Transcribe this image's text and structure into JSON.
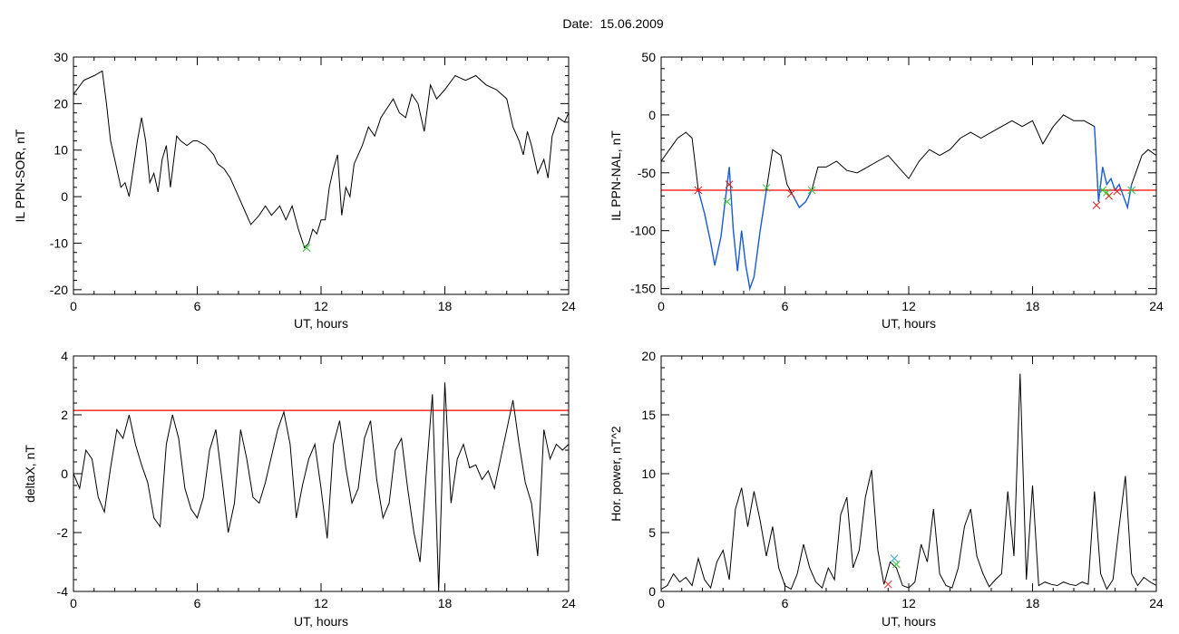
{
  "figure": {
    "title": "Date:  15.06.2009"
  },
  "colors": {
    "trace": "#000000",
    "threshold": "#ff0000",
    "highlight": "#1f5fd6",
    "marker_red": "#e0201a",
    "marker_green": "#33cc33",
    "marker_cyan": "#33aacc"
  },
  "chart_data": [
    {
      "id": "sor",
      "type": "line",
      "xlabel": "UT, hours",
      "ylabel": "IL PPN-SOR, nT",
      "xlim": [
        0,
        24
      ],
      "ylim": [
        -21,
        30
      ],
      "xticks": [
        0,
        6,
        12,
        18,
        24
      ],
      "yticks": [
        -20,
        -10,
        0,
        10,
        20,
        30
      ],
      "series": [
        {
          "x": [
            0,
            0.5,
            1.0,
            1.4,
            1.6,
            1.8,
            2.0,
            2.3,
            2.5,
            2.7,
            2.9,
            3.1,
            3.3,
            3.5,
            3.7,
            3.9,
            4.1,
            4.3,
            4.5,
            4.7,
            5.0,
            5.2,
            5.5,
            5.8,
            6.0,
            6.4,
            6.8,
            7.0,
            7.3,
            7.6,
            8.0,
            8.3,
            8.6,
            9.0,
            9.3,
            9.6,
            10.0,
            10.3,
            10.6,
            10.9,
            11.2,
            11.4,
            11.6,
            11.8,
            12.0,
            12.2,
            12.4,
            12.6,
            12.8,
            13.0,
            13.2,
            13.4,
            13.6,
            14.0,
            14.3,
            14.6,
            14.9,
            15.2,
            15.5,
            15.8,
            16.1,
            16.4,
            16.7,
            17.0,
            17.3,
            17.6,
            18.0,
            18.5,
            19.0,
            19.5,
            20.0,
            20.5,
            21.0,
            21.3,
            21.6,
            21.8,
            22.0,
            22.2,
            22.5,
            22.8,
            23.0,
            23.2,
            23.5,
            23.8,
            24.0
          ],
          "y": [
            22,
            25,
            26,
            27,
            20,
            12,
            8,
            2,
            3,
            0,
            6,
            12,
            17,
            12,
            3,
            5,
            1,
            8,
            11,
            2,
            13,
            12,
            11,
            12,
            12,
            11,
            9,
            7,
            6,
            4,
            0,
            -3,
            -6,
            -4,
            -2,
            -4,
            -2,
            -5,
            -2,
            -7,
            -11,
            -10,
            -7,
            -8,
            -5,
            -5,
            2,
            6,
            9,
            -4,
            2,
            0,
            7,
            11,
            15,
            13,
            17,
            19,
            21,
            18,
            17,
            22,
            20,
            14,
            24,
            21,
            23,
            26,
            25,
            26,
            24,
            23,
            21,
            15,
            12,
            9,
            14,
            11,
            5,
            8,
            4,
            13,
            17,
            16,
            18
          ]
        }
      ],
      "markers": [
        {
          "x": 11.3,
          "y": -11,
          "color": "green"
        }
      ]
    },
    {
      "id": "nal",
      "type": "line",
      "xlabel": "UT, hours",
      "ylabel": "IL PPN-NAL, nT",
      "xlim": [
        0,
        24
      ],
      "ylim": [
        -155,
        50
      ],
      "xticks": [
        0,
        6,
        12,
        18,
        24
      ],
      "yticks": [
        -150,
        -100,
        -50,
        0,
        50
      ],
      "threshold": -65,
      "series": [
        {
          "x": [
            0,
            0.4,
            0.8,
            1.2,
            1.5,
            1.8,
            2.1,
            2.4,
            2.6,
            2.9,
            3.1,
            3.3,
            3.5,
            3.7,
            3.9,
            4.1,
            4.3,
            4.5,
            4.8,
            5.1,
            5.4,
            5.8,
            6.1,
            6.4,
            6.7,
            7.0,
            7.3,
            7.6,
            8.0,
            8.5,
            9.0,
            9.5,
            10.0,
            10.5,
            11.0,
            11.5,
            12.0,
            12.5,
            13.0,
            13.5,
            14.0,
            14.5,
            15.0,
            15.5,
            16.0,
            16.5,
            17.0,
            17.5,
            18.0,
            18.5,
            19.0,
            19.5,
            20.0,
            20.5,
            21.0,
            21.2,
            21.4,
            21.6,
            21.8,
            22.0,
            22.2,
            22.4,
            22.6,
            22.8,
            23.0,
            23.3,
            23.6,
            24.0
          ],
          "y": [
            -40,
            -30,
            -20,
            -15,
            -20,
            -65,
            -85,
            -110,
            -130,
            -105,
            -75,
            -45,
            -100,
            -135,
            -100,
            -130,
            -150,
            -140,
            -100,
            -65,
            -30,
            -35,
            -60,
            -70,
            -80,
            -75,
            -65,
            -45,
            -45,
            -40,
            -48,
            -50,
            -45,
            -40,
            -35,
            -45,
            -55,
            -40,
            -30,
            -35,
            -30,
            -20,
            -15,
            -20,
            -15,
            -10,
            -5,
            -10,
            -5,
            -25,
            -10,
            0,
            -5,
            -5,
            -10,
            -75,
            -45,
            -60,
            -55,
            -65,
            -60,
            -70,
            -80,
            -60,
            -50,
            -35,
            -30,
            -35
          ]
        }
      ],
      "highlight_segments": [
        [
          1.8,
          5.2
        ],
        [
          6.2,
          7.4
        ],
        [
          21.0,
          22.9
        ]
      ],
      "markers": [
        {
          "x": 1.8,
          "y": -65,
          "color": "red"
        },
        {
          "x": 3.3,
          "y": -60,
          "color": "red"
        },
        {
          "x": 6.3,
          "y": -68,
          "color": "red"
        },
        {
          "x": 21.1,
          "y": -78,
          "color": "red"
        },
        {
          "x": 21.7,
          "y": -70,
          "color": "red"
        },
        {
          "x": 22.1,
          "y": -66,
          "color": "red"
        },
        {
          "x": 3.2,
          "y": -75,
          "color": "green"
        },
        {
          "x": 5.1,
          "y": -63,
          "color": "green"
        },
        {
          "x": 7.3,
          "y": -65,
          "color": "green"
        },
        {
          "x": 21.4,
          "y": -65,
          "color": "green"
        },
        {
          "x": 21.6,
          "y": -67,
          "color": "green"
        },
        {
          "x": 22.8,
          "y": -65,
          "color": "green"
        }
      ]
    },
    {
      "id": "deltax",
      "type": "line",
      "xlabel": "UT, hours",
      "ylabel": "deltaX, nT",
      "xlim": [
        0,
        24
      ],
      "ylim": [
        -4,
        4
      ],
      "xticks": [
        0,
        6,
        12,
        18,
        24
      ],
      "yticks": [
        -4,
        -2,
        0,
        2,
        4
      ],
      "threshold": 2.15,
      "series": [
        {
          "x": [
            0,
            0.3,
            0.6,
            0.9,
            1.2,
            1.5,
            1.8,
            2.1,
            2.4,
            2.7,
            3.0,
            3.3,
            3.6,
            3.9,
            4.2,
            4.5,
            4.8,
            5.1,
            5.4,
            5.7,
            6.0,
            6.3,
            6.6,
            6.9,
            7.2,
            7.5,
            7.8,
            8.1,
            8.4,
            8.7,
            9.0,
            9.3,
            9.6,
            9.9,
            10.2,
            10.5,
            10.8,
            11.1,
            11.4,
            11.7,
            12.0,
            12.3,
            12.6,
            12.9,
            13.2,
            13.5,
            13.8,
            14.1,
            14.4,
            14.7,
            15.0,
            15.3,
            15.6,
            15.9,
            16.2,
            16.5,
            16.8,
            17.1,
            17.4,
            17.7,
            18.0,
            18.3,
            18.6,
            18.9,
            19.2,
            19.5,
            19.8,
            20.1,
            20.4,
            20.7,
            21.0,
            21.3,
            21.6,
            21.9,
            22.2,
            22.5,
            22.8,
            23.1,
            23.4,
            23.7,
            24.0
          ],
          "y": [
            0,
            -0.5,
            0.8,
            0.5,
            -0.8,
            -1.3,
            0.2,
            1.5,
            1.2,
            2.0,
            1.0,
            0.3,
            -0.3,
            -1.5,
            -1.8,
            1.0,
            2.0,
            1.2,
            -0.5,
            -1.2,
            -1.5,
            -0.8,
            0.8,
            1.5,
            -0.2,
            -2.0,
            -1.0,
            1.5,
            0.5,
            -0.8,
            -1.0,
            -0.3,
            0.6,
            1.5,
            2.1,
            1.0,
            -1.5,
            -0.4,
            0.5,
            1.0,
            -0.5,
            -2.2,
            1.0,
            1.8,
            0.2,
            -1.0,
            -0.5,
            1.2,
            1.8,
            -0.2,
            -1.5,
            -1.0,
            0.8,
            1.2,
            -0.5,
            -2.0,
            -3.0,
            0.0,
            2.7,
            -4.0,
            3.1,
            -1.0,
            0.5,
            1.0,
            0.2,
            0.3,
            -0.2,
            0.1,
            -0.5,
            0.5,
            1.5,
            2.5,
            1.0,
            -0.3,
            -1.0,
            -2.8,
            1.5,
            0.5,
            1.0,
            0.8,
            1.0
          ]
        }
      ]
    },
    {
      "id": "power",
      "type": "line",
      "xlabel": "UT, hours",
      "ylabel": "Hor. power, nT^2",
      "xlim": [
        0,
        24
      ],
      "ylim": [
        0,
        20
      ],
      "xticks": [
        0,
        6,
        12,
        18,
        24
      ],
      "yticks": [
        0,
        5,
        10,
        15,
        20
      ],
      "series": [
        {
          "x": [
            0,
            0.3,
            0.6,
            0.9,
            1.2,
            1.5,
            1.8,
            2.1,
            2.4,
            2.7,
            3.0,
            3.3,
            3.6,
            3.9,
            4.2,
            4.5,
            4.8,
            5.1,
            5.4,
            5.7,
            6.0,
            6.3,
            6.6,
            6.9,
            7.2,
            7.5,
            7.8,
            8.1,
            8.4,
            8.7,
            9.0,
            9.3,
            9.6,
            9.9,
            10.2,
            10.5,
            10.8,
            11.1,
            11.4,
            11.7,
            12.0,
            12.3,
            12.6,
            12.9,
            13.2,
            13.5,
            13.8,
            14.1,
            14.4,
            14.7,
            15.0,
            15.3,
            15.6,
            15.9,
            16.2,
            16.5,
            16.8,
            17.1,
            17.4,
            17.7,
            18.0,
            18.3,
            18.6,
            18.9,
            19.2,
            19.5,
            19.8,
            20.1,
            20.4,
            20.7,
            21.0,
            21.3,
            21.6,
            21.9,
            22.2,
            22.5,
            22.8,
            23.1,
            23.4,
            23.7,
            24.0
          ],
          "y": [
            0.2,
            0.5,
            1.5,
            0.8,
            1.2,
            0.5,
            2.8,
            1.0,
            0.3,
            2.5,
            3.5,
            1.0,
            7.0,
            8.8,
            5.5,
            8.5,
            6.0,
            3.0,
            5.5,
            2.0,
            0.5,
            0.2,
            1.5,
            4.0,
            2.0,
            0.8,
            0.3,
            2.0,
            1.0,
            6.5,
            8.0,
            2.0,
            3.5,
            8.0,
            10.3,
            3.5,
            0.6,
            2.5,
            2.0,
            0.5,
            0.3,
            0.8,
            4.0,
            2.5,
            7.0,
            1.5,
            0.5,
            0.3,
            2.0,
            5.5,
            7.0,
            3.0,
            1.5,
            0.4,
            1.0,
            1.5,
            8.5,
            3.0,
            18.5,
            1.0,
            9.0,
            0.5,
            0.8,
            0.6,
            0.5,
            0.8,
            0.6,
            0.5,
            0.8,
            0.6,
            8.5,
            1.5,
            0.2,
            1.0,
            5.5,
            9.8,
            1.5,
            0.5,
            1.2,
            0.8,
            0.5
          ]
        }
      ],
      "markers": [
        {
          "x": 11.0,
          "y": 0.6,
          "color": "red"
        },
        {
          "x": 11.3,
          "y": 2.8,
          "color": "cyan"
        },
        {
          "x": 11.4,
          "y": 2.3,
          "color": "green"
        }
      ]
    }
  ]
}
